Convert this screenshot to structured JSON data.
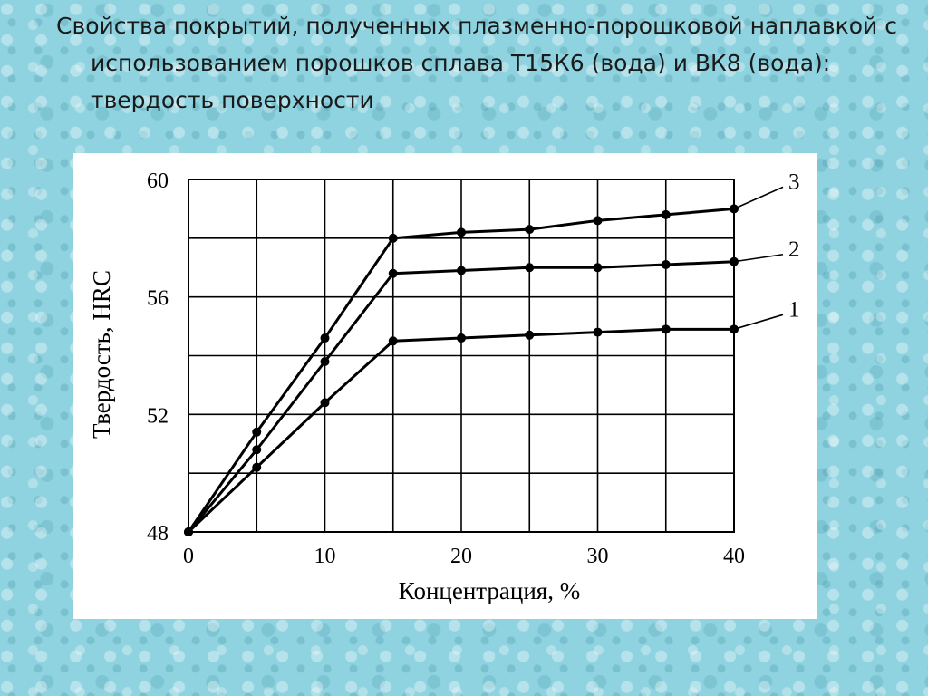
{
  "slide": {
    "title": "Свойства покрытий, полученных плазменно-порошковой наплавкой с использованием порошков сплава Т15К6 (вода) и ВК8 (вода): твердость поверхности"
  },
  "chart_data": {
    "type": "line",
    "title": "",
    "xlabel": "Концентрация, %",
    "ylabel": "Твердость, HRC",
    "xlim": [
      0,
      40
    ],
    "ylim": [
      48,
      60
    ],
    "x_ticks": [
      0,
      10,
      20,
      30,
      40
    ],
    "x_tick_labels": [
      "0",
      "10",
      "20",
      "30",
      "40"
    ],
    "y_ticks": [
      48,
      52,
      56,
      60
    ],
    "y_tick_labels": [
      "48",
      "52",
      "56",
      "60"
    ],
    "grid": true,
    "grid_x_step": 5,
    "grid_y_step": 2,
    "x": [
      0,
      5,
      10,
      15,
      20,
      25,
      30,
      35,
      40
    ],
    "series": [
      {
        "name": "1",
        "values": [
          48.0,
          50.2,
          52.4,
          54.5,
          54.6,
          54.7,
          54.8,
          54.9,
          54.9
        ]
      },
      {
        "name": "2",
        "values": [
          48.0,
          50.8,
          53.8,
          56.8,
          56.9,
          57.0,
          57.0,
          57.1,
          57.2
        ]
      },
      {
        "name": "3",
        "values": [
          48.0,
          51.4,
          54.6,
          58.0,
          58.2,
          58.3,
          58.6,
          58.8,
          59.0
        ]
      }
    ]
  }
}
